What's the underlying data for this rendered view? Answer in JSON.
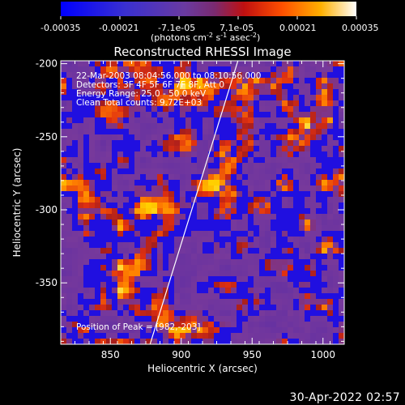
{
  "chart_data": {
    "type": "heatmap",
    "title": "Reconstructed RHESSI Image",
    "xlabel": "Heliocentric X (arcsec)",
    "ylabel": "Heliocentric Y (arcsec)",
    "xlim": [
      815,
      1015
    ],
    "ylim": [
      -392,
      -198
    ],
    "x_ticks": [
      850,
      900,
      950,
      1000
    ],
    "y_ticks": [
      -350,
      -300,
      -250,
      -200
    ],
    "colorbar": {
      "ticks": [
        "-0.00035",
        "-0.00021",
        "-7.1e-05",
        "7.1e-05",
        "0.00021",
        "0.00035"
      ],
      "range": [
        -0.00035,
        0.00035
      ],
      "unit_label": "(photons cm",
      "unit_sup1": "-2",
      "unit_mid": " s",
      "unit_sup2": "-1",
      "unit_mid2": " asec",
      "unit_sup3": "-2",
      "unit_end": ")"
    },
    "annotations": [
      "22-Mar-2003 08:04:56.000 to 08:10:56.000",
      "Detectors: 3F 4F 5F 6F 7F 8F, Att 0",
      "Energy Range: 25.0 - 50.0 keV",
      "Clean     Total counts: 9.72E+03"
    ],
    "peak_label": "Position of Peak = [982,-203]",
    "limb_line": {
      "x": [
        878,
        940
      ],
      "y": [
        -392,
        -198
      ]
    },
    "color_stops": [
      "#0000ff",
      "#5a2ca6",
      "#7a3a9a",
      "#9a1a20",
      "#e03010",
      "#ff8000",
      "#ffd000",
      "#ffffff"
    ]
  },
  "footer": {
    "timestamp": "30-Apr-2022 02:57"
  }
}
